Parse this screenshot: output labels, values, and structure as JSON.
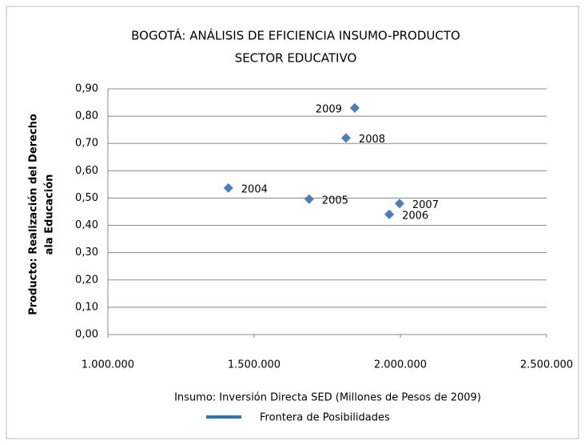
{
  "chart_data": {
    "type": "scatter",
    "title": [
      "BOGOTÁ: ANÁLISIS DE EFICIENCIA INSUMO-PRODUCTO",
      "SECTOR EDUCATIVO"
    ],
    "y_label": [
      "Producto: Realización del Derecho",
      "ala Educación"
    ],
    "x_label": "Insumo: Inversión Directa SED (Millones de Pesos de 2009)",
    "legend": {
      "name": "Frontera de Posibilidades",
      "color": "#2e75b6"
    },
    "point_color": "#4a7ebb",
    "point_labels": [
      "2004",
      "2005",
      "2006",
      "2007",
      "2008",
      "2009"
    ],
    "x": [
      1412000,
      1688000,
      1962000,
      1997000,
      1814000,
      1844000
    ],
    "values": [
      0.537,
      0.496,
      0.44,
      0.48,
      0.72,
      0.83
    ],
    "xlim": [
      1000000,
      2500000
    ],
    "xticks": [
      {
        "value": 1000000,
        "label": "1.000.000"
      },
      {
        "value": 1500000,
        "label": "1.500.000"
      },
      {
        "value": 2000000,
        "label": "2.000.000"
      },
      {
        "value": 2500000,
        "label": "2.500.000"
      }
    ],
    "ylim": [
      0,
      0.9
    ],
    "yticks": [
      {
        "value": 0,
        "label": "0,00"
      },
      {
        "value": 0.1,
        "label": "0,10"
      },
      {
        "value": 0.2,
        "label": "0,20"
      },
      {
        "value": 0.3,
        "label": "0,30"
      },
      {
        "value": 0.4,
        "label": "0,40"
      },
      {
        "value": 0.5,
        "label": "0,50"
      },
      {
        "value": 0.6,
        "label": "0,60"
      },
      {
        "value": 0.7,
        "label": "0,70"
      },
      {
        "value": 0.8,
        "label": "0,80"
      },
      {
        "value": 0.9,
        "label": "0,90"
      }
    ],
    "grid": true
  }
}
